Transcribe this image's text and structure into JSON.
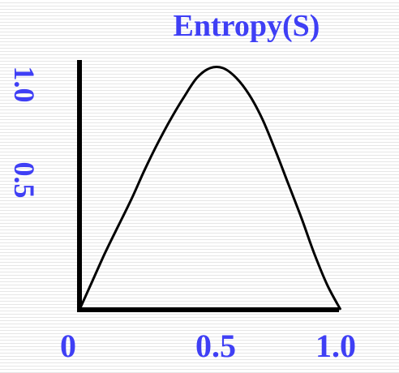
{
  "chart_data": {
    "type": "line",
    "title": "Entropy(S)",
    "xlabel": "",
    "ylabel": "",
    "x_ticks": [
      "0",
      "0.5",
      "1.0"
    ],
    "y_ticks": [
      "1.0",
      "0.5"
    ],
    "xlim": [
      0,
      1
    ],
    "ylim": [
      0,
      1
    ],
    "grid": false,
    "series": [
      {
        "x": [
          0,
          0.05,
          0.1,
          0.15,
          0.2,
          0.25,
          0.3,
          0.35,
          0.4,
          0.45,
          0.5,
          0.55,
          0.6,
          0.65,
          0.7,
          0.75,
          0.8,
          0.85,
          0.9,
          0.95,
          1.0
        ],
        "values": [
          0,
          0.12,
          0.24,
          0.35,
          0.46,
          0.58,
          0.69,
          0.79,
          0.88,
          0.96,
          1.0,
          1.0,
          0.96,
          0.89,
          0.79,
          0.66,
          0.52,
          0.38,
          0.23,
          0.1,
          0
        ]
      }
    ]
  },
  "colors": {
    "text": "#3f3ff5",
    "line": "#000000",
    "axis": "#000000"
  }
}
